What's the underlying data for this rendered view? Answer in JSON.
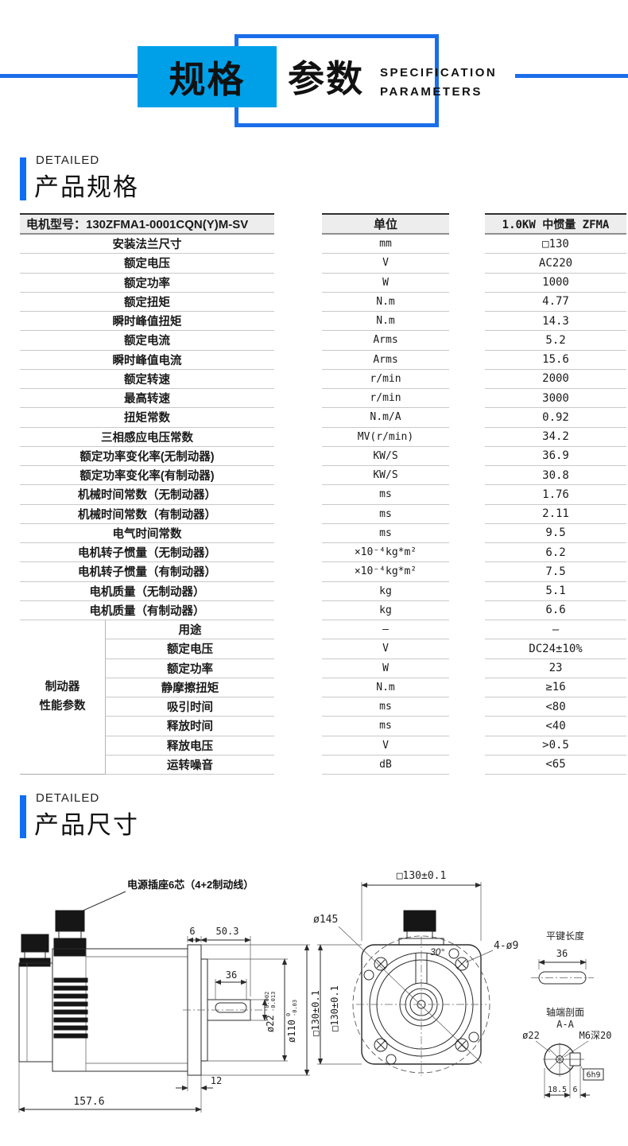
{
  "banner": {
    "title_box1": "规格",
    "title_box2": "参数",
    "subtitle_line1": "SPECIFICATION",
    "subtitle_line2": "PARAMETERS"
  },
  "colors": {
    "accent_blue": "#0e6ef4",
    "outline_blue": "#1b6ee9",
    "cyan": "#00a0e9",
    "header_gray": "#ededed"
  },
  "section_spec": {
    "eyebrow": "DETAILED",
    "title": "产品规格"
  },
  "section_dim": {
    "eyebrow": "DETAILED",
    "title": "产品尺寸"
  },
  "spec_table": {
    "header": {
      "model": "电机型号：130ZFMA1-0001CQN(Y)M-SV",
      "unit": "单位",
      "value": "1.0KW 中惯量 ZFMA"
    },
    "rows": [
      {
        "label": "安装法兰尺寸",
        "unit": "mm",
        "value": "□130"
      },
      {
        "label": "额定电压",
        "unit": "V",
        "value": "AC220"
      },
      {
        "label": "额定功率",
        "unit": "W",
        "value": "1000"
      },
      {
        "label": "额定扭矩",
        "unit": "N.m",
        "value": "4.77"
      },
      {
        "label": "瞬时峰值扭矩",
        "unit": "N.m",
        "value": "14.3"
      },
      {
        "label": "额定电流",
        "unit": "Arms",
        "value": "5.2"
      },
      {
        "label": "瞬时峰值电流",
        "unit": "Arms",
        "value": "15.6"
      },
      {
        "label": "额定转速",
        "unit": "r/min",
        "value": "2000"
      },
      {
        "label": "最高转速",
        "unit": "r/min",
        "value": "3000"
      },
      {
        "label": "扭矩常数",
        "unit": "N.m/A",
        "value": "0.92"
      },
      {
        "label": "三相感应电压常数",
        "unit": "MV(r/min)",
        "value": "34.2"
      },
      {
        "label": "额定功率变化率(无制动器)",
        "unit": "KW/S",
        "value": "36.9"
      },
      {
        "label": "额定功率变化率(有制动器)",
        "unit": "KW/S",
        "value": "30.8"
      },
      {
        "label": "机械时间常数（无制动器）",
        "unit": "ms",
        "value": "1.76"
      },
      {
        "label": "机械时间常数（有制动器）",
        "unit": "ms",
        "value": "2.11"
      },
      {
        "label": "电气时间常数",
        "unit": "ms",
        "value": "9.5"
      },
      {
        "label": "电机转子惯量（无制动器）",
        "unit": "×10⁻⁴kg*m²",
        "value": "6.2"
      },
      {
        "label": "电机转子惯量（有制动器）",
        "unit": "×10⁻⁴kg*m²",
        "value": "7.5"
      },
      {
        "label": "电机质量（无制动器）",
        "unit": "kg",
        "value": "5.1"
      },
      {
        "label": "电机质量（有制动器）",
        "unit": "kg",
        "value": "6.6"
      }
    ],
    "brake_group": {
      "label_line1": "制动器",
      "label_line2": "性能参数",
      "rows": [
        {
          "label": "用途",
          "unit": "—",
          "value": "—"
        },
        {
          "label": "额定电压",
          "unit": "V",
          "value": "DC24±10%"
        },
        {
          "label": "额定功率",
          "unit": "W",
          "value": "23"
        },
        {
          "label": "静摩擦扭矩",
          "unit": "N.m",
          "value": "≥16"
        },
        {
          "label": "吸引时间",
          "unit": "ms",
          "value": "<80"
        },
        {
          "label": "释放时间",
          "unit": "ms",
          "value": "<40"
        },
        {
          "label": "释放电压",
          "unit": "V",
          "value": ">0.5"
        },
        {
          "label": "运转噪音",
          "unit": "dB",
          "value": "<65"
        }
      ]
    }
  },
  "drawings": {
    "side_view": {
      "callout": "电源插座6芯（4+2制动线）",
      "dims": {
        "d6": "6",
        "d50_3": "50.3",
        "d36": "36",
        "shaft_dia": "ø22",
        "shaft_tol_top": "-0.002",
        "shaft_tol_bot": "-0.013",
        "pilot_dia": "ø110",
        "pilot_tol_top": "0",
        "pilot_tol_bot": "-0.03",
        "height": "□130±0.1",
        "d12": "12",
        "total": "157.6"
      }
    },
    "front_view": {
      "dims": {
        "width": "□130±0.1",
        "height": "□130±0.1",
        "bolt_circle": "ø145",
        "angle": "30°",
        "holes": "4-ø9"
      }
    },
    "key_detail": {
      "title": "平键长度",
      "length": "36"
    },
    "shaft_section": {
      "title": "轴端剖面",
      "label": "A-A",
      "dia": "ø22",
      "tap": "M6深20",
      "key": "6h9",
      "d18_5": "18.5",
      "d6": "6"
    }
  }
}
